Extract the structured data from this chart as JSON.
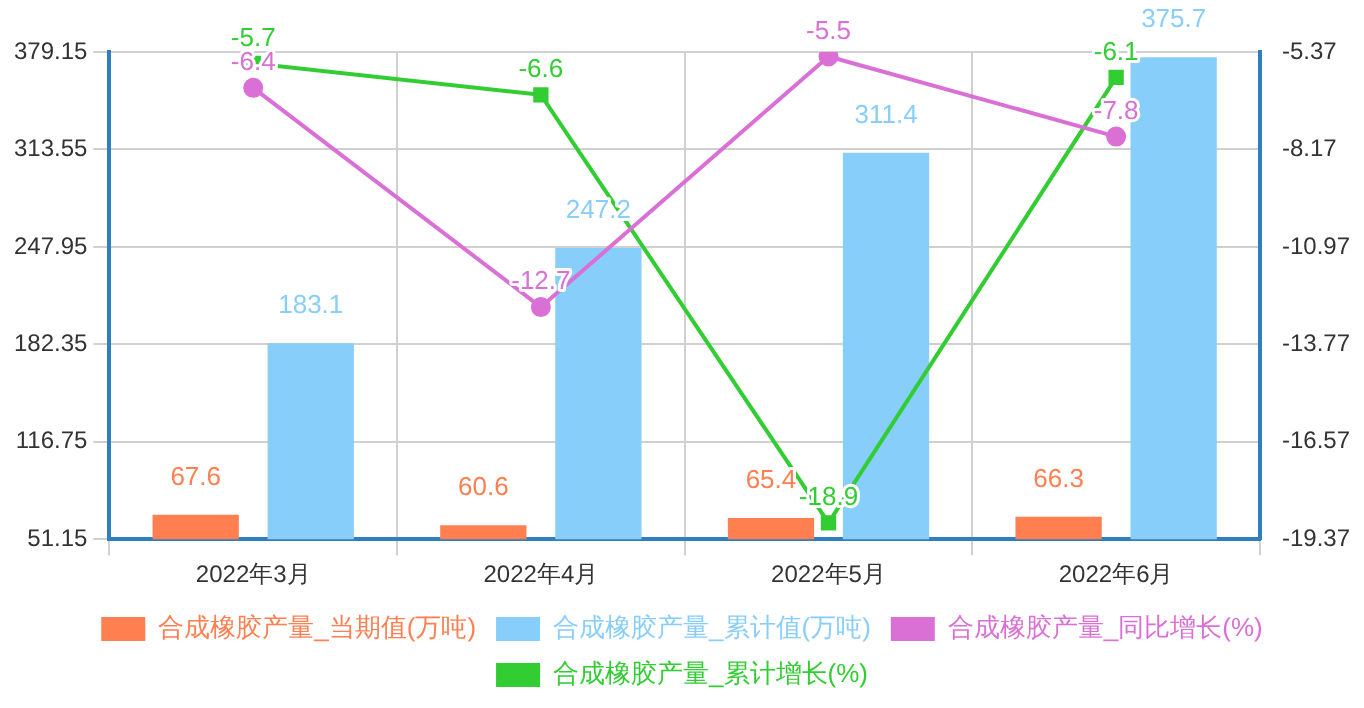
{
  "chart_data": {
    "type": "bar",
    "categories": [
      "2022年3月",
      "2022年4月",
      "2022年5月",
      "2022年6月"
    ],
    "series": [
      {
        "name": "合成橡胶产量_当期值(万吨)",
        "color": "#ff7f50",
        "values": [
          67.6,
          60.6,
          65.4,
          66.3
        ]
      },
      {
        "name": "合成橡胶产量_累计值(万吨)",
        "color": "#87cefa",
        "values": [
          183.1,
          247.2,
          311.4,
          375.7
        ]
      },
      {
        "name": "合成橡胶产量_同比增长(%)",
        "type": "line",
        "axis": "y2",
        "marker": "circle",
        "color": "#da70d6",
        "values": [
          -6.4,
          -12.7,
          -5.5,
          -7.8
        ]
      },
      {
        "name": "合成橡胶产量_累计增长(%)",
        "type": "line",
        "axis": "y2",
        "marker": "square",
        "color": "#32cd32",
        "values": [
          -5.7,
          -6.6,
          -18.9,
          -6.1
        ]
      }
    ],
    "ylim": [
      51.15,
      379.15
    ],
    "yticks": [
      51.15,
      116.75,
      182.35,
      247.95,
      313.55,
      379.15
    ],
    "y2lim": [
      -19.37,
      -5.37
    ],
    "y2ticks": [
      -19.37,
      -16.57,
      -13.77,
      -10.97,
      -8.17,
      -5.37
    ],
    "grid": true,
    "legend": "bottom",
    "data_labels": true
  }
}
